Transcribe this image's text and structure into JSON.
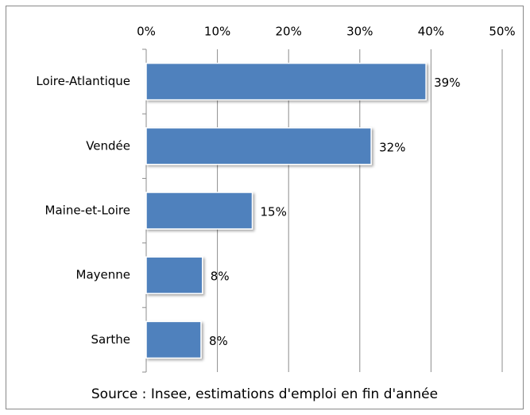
{
  "chart_data": {
    "type": "bar",
    "orientation": "horizontal",
    "categories": [
      "Loire-Atlantique",
      "Vendée",
      "Maine-et-Loire",
      "Mayenne",
      "Sarthe"
    ],
    "values": [
      39.3,
      31.6,
      14.9,
      7.9,
      7.7
    ],
    "value_labels": [
      "39%",
      "32%",
      "15%",
      "8%",
      "8%"
    ],
    "color": "#4f81bd",
    "xlim": [
      0,
      50
    ],
    "xticks": [
      {
        "value": 0,
        "label": "0%"
      },
      {
        "value": 10,
        "label": "10%"
      },
      {
        "value": 20,
        "label": "20%"
      },
      {
        "value": 30,
        "label": "30%"
      },
      {
        "value": 40,
        "label": "40%"
      },
      {
        "value": 50,
        "label": "50%"
      }
    ],
    "grid": true,
    "source": "Source : Insee, estimations d'emploi en fin d'année"
  }
}
